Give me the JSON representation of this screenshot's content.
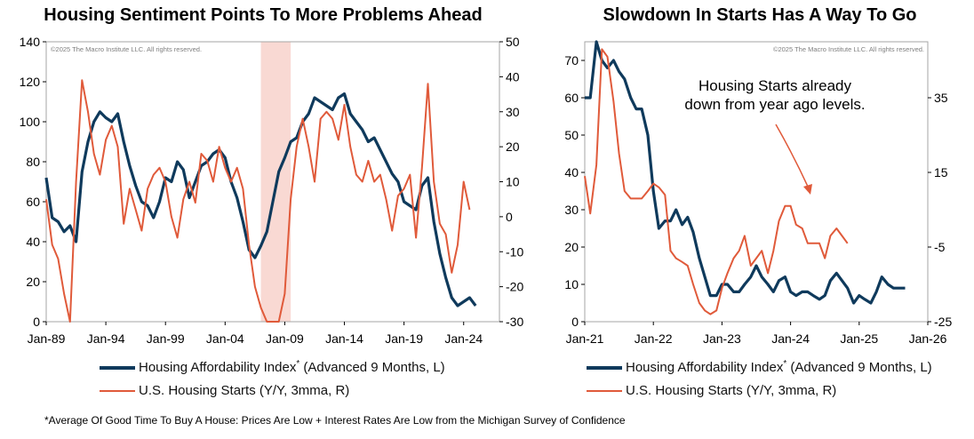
{
  "colors": {
    "affordability": "#0f3a5c",
    "starts": "#e05a3a",
    "recession": "#f9d9d3"
  },
  "left": {
    "title": "Housing Sentiment Points To More Problems Ahead",
    "copyright": "©2025 The Macro Institute LLC. All rights reserved.",
    "legend": {
      "affordability": "Housing Affordability Index",
      "affordability_mark": "*",
      "affordability_suffix": " (Advanced 9 Months, L)",
      "starts": "U.S. Housing Starts (Y/Y, 3mma, R)"
    }
  },
  "right": {
    "title": "Slowdown In Starts Has A Way To Go",
    "copyright": "©2025 The Macro Institute LLC. All rights reserved.",
    "annotation_line1": "Housing Starts already",
    "annotation_line2": "down from year ago levels.",
    "legend": {
      "affordability": "Housing Affordability Index",
      "affordability_mark": "*",
      "affordability_suffix": " (Advanced 9 Months, L)",
      "starts": "U.S. Housing Starts (Y/Y, 3mma, R)"
    }
  },
  "footnote": "*Average Of Good Time To Buy A House: Prices Are Low + Interest Rates Are Low from the Michigan Survey of Confidence",
  "chart_data": [
    {
      "type": "line",
      "title": "Housing Sentiment Points To More Problems Ahead",
      "x_tick_labels": [
        "Jan-89",
        "Jan-94",
        "Jan-99",
        "Jan-04",
        "Jan-09",
        "Jan-14",
        "Jan-19",
        "Jan-24"
      ],
      "xlim": [
        1989.0,
        2027.0
      ],
      "y_left_ticks": [
        0,
        20,
        40,
        60,
        80,
        100,
        120,
        140
      ],
      "ylim_left": [
        0,
        140
      ],
      "y_right_ticks": [
        50,
        40,
        30,
        20,
        10,
        0,
        -10,
        -20,
        -30
      ],
      "ylim_right": [
        -30,
        50
      ],
      "shaded_period": [
        2007.0,
        2009.5
      ],
      "legend_placement": "bottom",
      "series": [
        {
          "name": "Housing Affordability Index* (Advanced 9 Months, L)",
          "axis": "left",
          "x": [
            1989.0,
            1989.5,
            1990.0,
            1990.5,
            1991.0,
            1991.5,
            1992.0,
            1992.5,
            1993.0,
            1993.5,
            1994.0,
            1994.5,
            1995.0,
            1995.5,
            1996.0,
            1996.5,
            1997.0,
            1997.5,
            1998.0,
            1998.5,
            1999.0,
            1999.5,
            2000.0,
            2000.5,
            2001.0,
            2001.5,
            2002.0,
            2002.5,
            2003.0,
            2003.5,
            2004.0,
            2004.5,
            2005.0,
            2005.5,
            2006.0,
            2006.5,
            2007.0,
            2007.5,
            2008.0,
            2008.5,
            2009.0,
            2009.5,
            2010.0,
            2010.5,
            2011.0,
            2011.5,
            2012.0,
            2012.5,
            2013.0,
            2013.5,
            2014.0,
            2014.5,
            2015.0,
            2015.5,
            2016.0,
            2016.5,
            2017.0,
            2017.5,
            2018.0,
            2018.5,
            2019.0,
            2019.5,
            2020.0,
            2020.5,
            2021.0,
            2021.5,
            2022.0,
            2022.5,
            2023.0,
            2023.5,
            2024.0,
            2024.5,
            2025.0
          ],
          "values": [
            72,
            52,
            50,
            45,
            48,
            40,
            75,
            90,
            100,
            105,
            102,
            100,
            104,
            90,
            78,
            68,
            60,
            58,
            52,
            60,
            72,
            70,
            80,
            76,
            62,
            70,
            78,
            80,
            84,
            86,
            82,
            70,
            62,
            50,
            36,
            32,
            38,
            45,
            60,
            75,
            82,
            90,
            92,
            100,
            104,
            112,
            110,
            108,
            106,
            112,
            114,
            104,
            100,
            96,
            90,
            92,
            86,
            80,
            74,
            70,
            60,
            58,
            56,
            68,
            72,
            50,
            34,
            22,
            12,
            8,
            10,
            12,
            8
          ]
        },
        {
          "name": "U.S. Housing Starts (Y/Y, 3mma, R)",
          "axis": "right",
          "x": [
            1989.0,
            1989.5,
            1990.0,
            1990.5,
            1991.0,
            1991.5,
            1992.0,
            1992.5,
            1993.0,
            1993.5,
            1994.0,
            1994.5,
            1995.0,
            1995.5,
            1996.0,
            1996.5,
            1997.0,
            1997.5,
            1998.0,
            1998.5,
            1999.0,
            1999.5,
            2000.0,
            2000.5,
            2001.0,
            2001.5,
            2002.0,
            2002.5,
            2003.0,
            2003.5,
            2004.0,
            2004.5,
            2005.0,
            2005.5,
            2006.0,
            2006.5,
            2007.0,
            2007.5,
            2008.0,
            2008.5,
            2009.0,
            2009.5,
            2010.0,
            2010.5,
            2011.0,
            2011.5,
            2012.0,
            2012.5,
            2013.0,
            2013.5,
            2014.0,
            2014.5,
            2015.0,
            2015.5,
            2016.0,
            2016.5,
            2017.0,
            2017.5,
            2018.0,
            2018.5,
            2019.0,
            2019.5,
            2020.0,
            2020.5,
            2021.0,
            2021.5,
            2022.0,
            2022.5,
            2023.0,
            2023.5,
            2024.0,
            2024.5
          ],
          "values": [
            5,
            -8,
            -12,
            -22,
            -30,
            10,
            39,
            30,
            18,
            12,
            22,
            26,
            20,
            -2,
            8,
            2,
            -4,
            8,
            12,
            14,
            10,
            0,
            -6,
            5,
            10,
            4,
            18,
            16,
            10,
            20,
            14,
            10,
            14,
            8,
            -8,
            -20,
            -26,
            -30,
            -30,
            -30,
            -22,
            5,
            20,
            28,
            20,
            10,
            28,
            30,
            28,
            22,
            32,
            20,
            12,
            10,
            16,
            10,
            12,
            5,
            -4,
            6,
            8,
            12,
            -6,
            14,
            38,
            10,
            -2,
            -5,
            -16,
            -8,
            10,
            2
          ]
        }
      ]
    },
    {
      "type": "line",
      "title": "Slowdown In Starts Has A Way To Go",
      "x_tick_labels": [
        "Jan-21",
        "Jan-22",
        "Jan-23",
        "Jan-24",
        "Jan-25",
        "Jan-26"
      ],
      "xlim": [
        2021.0,
        2026.0
      ],
      "y_left_ticks": [
        0,
        10,
        20,
        30,
        40,
        50,
        60,
        70
      ],
      "ylim_left": [
        0,
        75
      ],
      "y_right_ticks": [
        35,
        15,
        -5,
        -25
      ],
      "ylim_right": [
        -25,
        50
      ],
      "annotation": "Housing Starts already down from year ago levels.",
      "legend_placement": "bottom",
      "series": [
        {
          "name": "Housing Affordability Index* (Advanced 9 Months, L)",
          "axis": "left",
          "x": [
            2021.0,
            2021.08,
            2021.17,
            2021.25,
            2021.33,
            2021.42,
            2021.5,
            2021.58,
            2021.67,
            2021.75,
            2021.83,
            2021.92,
            2022.0,
            2022.08,
            2022.17,
            2022.25,
            2022.33,
            2022.42,
            2022.5,
            2022.58,
            2022.67,
            2022.75,
            2022.83,
            2022.92,
            2023.0,
            2023.08,
            2023.17,
            2023.25,
            2023.33,
            2023.42,
            2023.5,
            2023.58,
            2023.67,
            2023.75,
            2023.83,
            2023.92,
            2024.0,
            2024.08,
            2024.17,
            2024.25,
            2024.33,
            2024.42,
            2024.5,
            2024.58,
            2024.67,
            2024.75,
            2024.83,
            2024.92,
            2025.0,
            2025.08,
            2025.17,
            2025.25,
            2025.33,
            2025.42,
            2025.5,
            2025.58,
            2025.67
          ],
          "values": [
            60,
            60,
            75,
            70,
            68,
            70,
            67,
            65,
            60,
            57,
            57,
            50,
            35,
            25,
            27,
            27,
            30,
            26,
            28,
            24,
            17,
            12,
            7,
            7,
            10,
            10,
            8,
            8,
            10,
            12,
            15,
            12,
            10,
            8,
            11,
            12,
            8,
            7,
            8,
            8,
            7,
            6,
            7,
            11,
            13,
            11,
            9,
            5,
            7,
            6,
            5,
            8,
            12,
            10,
            9,
            9,
            9
          ]
        },
        {
          "name": "U.S. Housing Starts (Y/Y, 3mma, R)",
          "axis": "right",
          "x": [
            2021.0,
            2021.08,
            2021.17,
            2021.25,
            2021.33,
            2021.42,
            2021.5,
            2021.58,
            2021.67,
            2021.75,
            2021.83,
            2021.92,
            2022.0,
            2022.08,
            2022.17,
            2022.25,
            2022.33,
            2022.42,
            2022.5,
            2022.58,
            2022.67,
            2022.75,
            2022.83,
            2022.92,
            2023.0,
            2023.08,
            2023.17,
            2023.25,
            2023.33,
            2023.42,
            2023.5,
            2023.58,
            2023.67,
            2023.75,
            2023.83,
            2023.92,
            2024.0,
            2024.08,
            2024.17,
            2024.25,
            2024.33,
            2024.42,
            2024.5,
            2024.58,
            2024.67,
            2024.75,
            2024.83
          ],
          "values": [
            14,
            4,
            17,
            48,
            46,
            34,
            20,
            10,
            8,
            8,
            8,
            10,
            12,
            11,
            9,
            -6,
            -8,
            -9,
            -10,
            -15,
            -20,
            -22,
            -23,
            -22,
            -16,
            -12,
            -8,
            -6,
            -2,
            -10,
            -8,
            -6,
            -12,
            -6,
            2,
            6,
            6,
            1,
            0,
            -4,
            -4,
            -4,
            -8,
            -2,
            0,
            -2,
            -4
          ]
        }
      ]
    }
  ]
}
